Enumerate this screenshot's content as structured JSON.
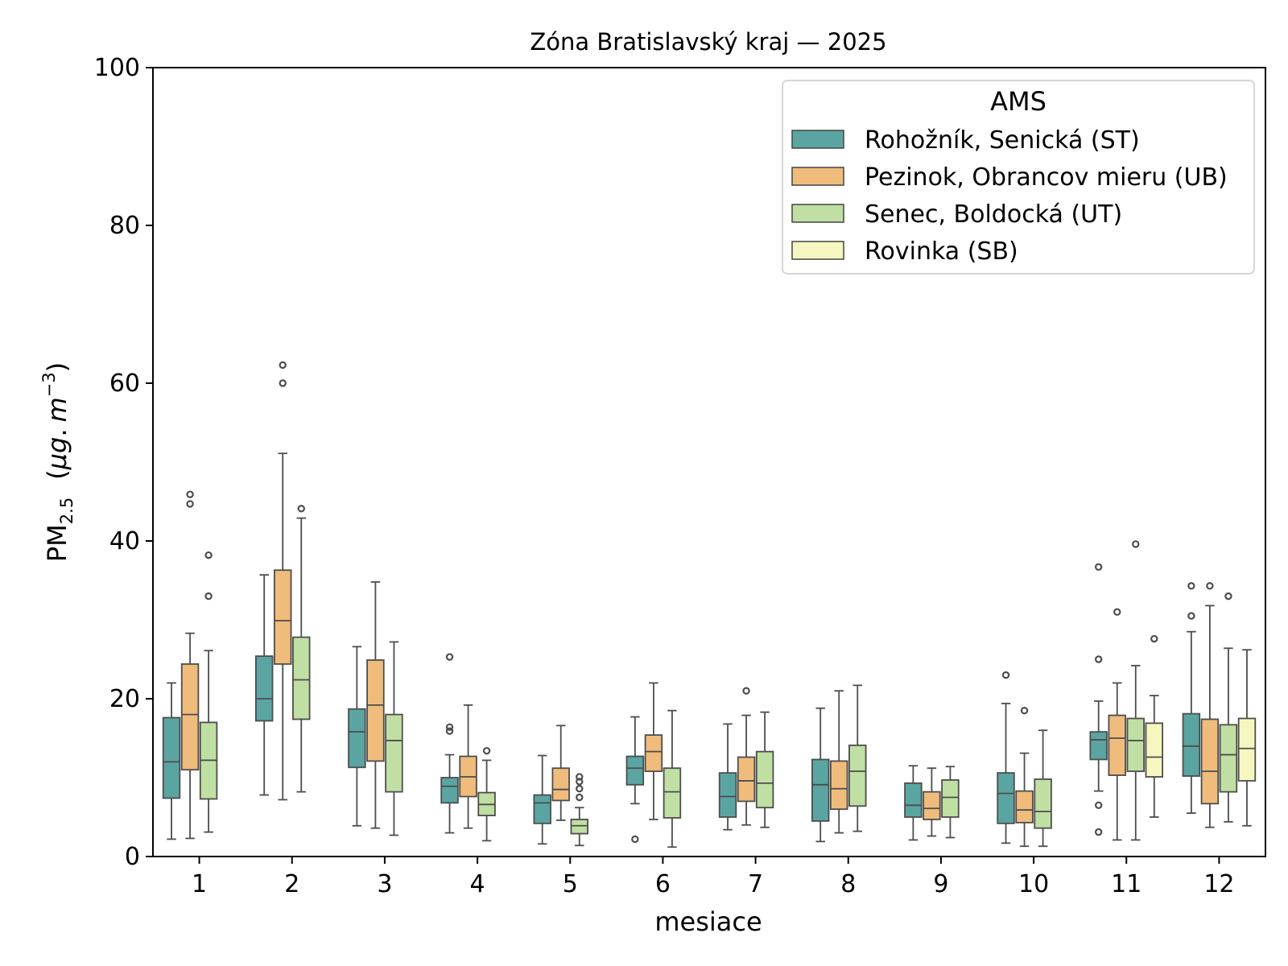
{
  "chart_data": {
    "type": "boxplot",
    "title": "Zóna Bratislavský kraj —  2025",
    "xlabel": "mesiace",
    "ylabel": {
      "main": "PM",
      "sub": "2.5",
      "unit_prefix": "(",
      "unit_mu": "μ",
      "unit_g": "g",
      "unit_dot": ".",
      "unit_m": "m",
      "unit_exp": "−3",
      "unit_suffix": ")"
    },
    "ylim": [
      0,
      100
    ],
    "yticks": [
      0,
      20,
      40,
      60,
      80,
      100
    ],
    "categories": [
      "1",
      "2",
      "3",
      "4",
      "5",
      "6",
      "7",
      "8",
      "9",
      "10",
      "11",
      "12"
    ],
    "legend": {
      "title": "AMS",
      "placement": "top-right"
    },
    "series": [
      {
        "name": "Rohožník, Senická (ST)",
        "color": "#5aa5a2",
        "boxes": [
          {
            "month": "1",
            "whisker_low": 2.2,
            "q1": 7.4,
            "median": 12.0,
            "q3": 17.6,
            "whisker_high": 22.0,
            "outliers": []
          },
          {
            "month": "2",
            "whisker_low": 7.8,
            "q1": 17.2,
            "median": 20.0,
            "q3": 25.4,
            "whisker_high": 35.7,
            "outliers": []
          },
          {
            "month": "3",
            "whisker_low": 3.9,
            "q1": 11.3,
            "median": 15.8,
            "q3": 18.7,
            "whisker_high": 26.6,
            "outliers": []
          },
          {
            "month": "4",
            "whisker_low": 3.0,
            "q1": 6.8,
            "median": 8.9,
            "q3": 10.0,
            "whisker_high": 12.9,
            "outliers": [
              15.9,
              16.4,
              25.3
            ]
          },
          {
            "month": "5",
            "whisker_low": 1.6,
            "q1": 4.2,
            "median": 6.8,
            "q3": 7.8,
            "whisker_high": 12.8,
            "outliers": []
          },
          {
            "month": "6",
            "whisker_low": 6.7,
            "q1": 9.1,
            "median": 11.2,
            "q3": 12.7,
            "whisker_high": 17.7,
            "outliers": [
              2.2
            ]
          },
          {
            "month": "7",
            "whisker_low": 3.4,
            "q1": 5.0,
            "median": 7.6,
            "q3": 10.6,
            "whisker_high": 16.8,
            "outliers": []
          },
          {
            "month": "8",
            "whisker_low": 1.9,
            "q1": 4.5,
            "median": 9.1,
            "q3": 12.3,
            "whisker_high": 18.8,
            "outliers": []
          },
          {
            "month": "9",
            "whisker_low": 2.1,
            "q1": 5.0,
            "median": 6.5,
            "q3": 9.3,
            "whisker_high": 11.5,
            "outliers": []
          },
          {
            "month": "10",
            "whisker_low": 1.7,
            "q1": 4.2,
            "median": 8.0,
            "q3": 10.6,
            "whisker_high": 19.4,
            "outliers": [
              23.0
            ]
          },
          {
            "month": "11",
            "whisker_low": 8.3,
            "q1": 12.3,
            "median": 14.8,
            "q3": 15.8,
            "whisker_high": 19.7,
            "outliers": [
              3.1,
              6.5,
              25.0,
              36.7
            ]
          },
          {
            "month": "12",
            "whisker_low": 5.5,
            "q1": 10.2,
            "median": 14.0,
            "q3": 18.1,
            "whisker_high": 28.5,
            "outliers": [
              30.5,
              34.3
            ]
          }
        ]
      },
      {
        "name": "Pezinok, Obrancov mieru (UB)",
        "color": "#efbc7c",
        "boxes": [
          {
            "month": "1",
            "whisker_low": 2.3,
            "q1": 11.0,
            "median": 18.0,
            "q3": 24.4,
            "whisker_high": 28.3,
            "outliers": [
              44.7,
              45.9
            ]
          },
          {
            "month": "2",
            "whisker_low": 7.2,
            "q1": 24.4,
            "median": 29.9,
            "q3": 36.3,
            "whisker_high": 51.1,
            "outliers": [
              60.0,
              62.3
            ]
          },
          {
            "month": "3",
            "whisker_low": 3.6,
            "q1": 12.1,
            "median": 19.2,
            "q3": 24.9,
            "whisker_high": 34.8,
            "outliers": []
          },
          {
            "month": "4",
            "whisker_low": 3.6,
            "q1": 7.6,
            "median": 10.1,
            "q3": 12.7,
            "whisker_high": 19.2,
            "outliers": []
          },
          {
            "month": "5",
            "whisker_low": 4.6,
            "q1": 7.1,
            "median": 8.5,
            "q3": 11.2,
            "whisker_high": 16.6,
            "outliers": []
          },
          {
            "month": "6",
            "whisker_low": 4.7,
            "q1": 10.8,
            "median": 13.3,
            "q3": 15.4,
            "whisker_high": 22.0,
            "outliers": []
          },
          {
            "month": "7",
            "whisker_low": 4.0,
            "q1": 7.0,
            "median": 9.6,
            "q3": 12.6,
            "whisker_high": 17.9,
            "outliers": [
              21.0
            ]
          },
          {
            "month": "8",
            "whisker_low": 3.0,
            "q1": 6.0,
            "median": 8.6,
            "q3": 12.1,
            "whisker_high": 21.0,
            "outliers": []
          },
          {
            "month": "9",
            "whisker_low": 2.6,
            "q1": 4.7,
            "median": 6.1,
            "q3": 8.2,
            "whisker_high": 11.2,
            "outliers": []
          },
          {
            "month": "10",
            "whisker_low": 1.3,
            "q1": 4.3,
            "median": 5.9,
            "q3": 8.3,
            "whisker_high": 13.1,
            "outliers": [
              18.5
            ]
          },
          {
            "month": "11",
            "whisker_low": 2.1,
            "q1": 10.3,
            "median": 15.0,
            "q3": 17.9,
            "whisker_high": 22.0,
            "outliers": [
              31.0
            ]
          },
          {
            "month": "12",
            "whisker_low": 3.7,
            "q1": 6.7,
            "median": 10.8,
            "q3": 17.4,
            "whisker_high": 31.8,
            "outliers": [
              34.3
            ]
          }
        ]
      },
      {
        "name": "Senec, Boldocká (UT)",
        "color": "#c0dfa3",
        "boxes": [
          {
            "month": "1",
            "whisker_low": 3.1,
            "q1": 7.3,
            "median": 12.2,
            "q3": 17.0,
            "whisker_high": 26.1,
            "outliers": [
              33.0,
              38.2
            ]
          },
          {
            "month": "2",
            "whisker_low": 8.2,
            "q1": 17.4,
            "median": 22.4,
            "q3": 27.8,
            "whisker_high": 42.9,
            "outliers": [
              44.1
            ]
          },
          {
            "month": "3",
            "whisker_low": 2.7,
            "q1": 8.2,
            "median": 14.7,
            "q3": 18.0,
            "whisker_high": 27.2,
            "outliers": []
          },
          {
            "month": "4",
            "whisker_low": 2.0,
            "q1": 5.2,
            "median": 6.6,
            "q3": 8.1,
            "whisker_high": 12.2,
            "outliers": [
              13.4
            ]
          },
          {
            "month": "5",
            "whisker_low": 1.4,
            "q1": 2.9,
            "median": 3.9,
            "q3": 4.7,
            "whisker_high": 6.2,
            "outliers": [
              7.5,
              8.6,
              9.5,
              10.1
            ]
          },
          {
            "month": "6",
            "whisker_low": 1.2,
            "q1": 4.9,
            "median": 8.2,
            "q3": 11.2,
            "whisker_high": 18.5,
            "outliers": []
          },
          {
            "month": "7",
            "whisker_low": 3.7,
            "q1": 6.2,
            "median": 9.3,
            "q3": 13.3,
            "whisker_high": 18.3,
            "outliers": []
          },
          {
            "month": "8",
            "whisker_low": 3.2,
            "q1": 6.4,
            "median": 10.8,
            "q3": 14.1,
            "whisker_high": 21.7,
            "outliers": []
          },
          {
            "month": "9",
            "whisker_low": 2.4,
            "q1": 5.0,
            "median": 7.5,
            "q3": 9.7,
            "whisker_high": 11.4,
            "outliers": []
          },
          {
            "month": "10",
            "whisker_low": 1.3,
            "q1": 3.6,
            "median": 5.7,
            "q3": 9.8,
            "whisker_high": 16.0,
            "outliers": []
          },
          {
            "month": "11",
            "whisker_low": 2.1,
            "q1": 10.8,
            "median": 14.7,
            "q3": 17.5,
            "whisker_high": 24.2,
            "outliers": [
              39.6
            ]
          },
          {
            "month": "12",
            "whisker_low": 4.4,
            "q1": 8.2,
            "median": 12.9,
            "q3": 16.7,
            "whisker_high": 26.4,
            "outliers": [
              33.0
            ]
          }
        ]
      },
      {
        "name": "Rovinka (SB)",
        "color": "#f6f7c0",
        "boxes": [
          {
            "month": "11",
            "whisker_low": 5.0,
            "q1": 10.1,
            "median": 12.6,
            "q3": 16.9,
            "whisker_high": 20.4,
            "outliers": [
              27.6
            ]
          },
          {
            "month": "12",
            "whisker_low": 3.9,
            "q1": 9.6,
            "median": 13.7,
            "q3": 17.5,
            "whisker_high": 26.2,
            "outliers": []
          }
        ]
      }
    ]
  }
}
